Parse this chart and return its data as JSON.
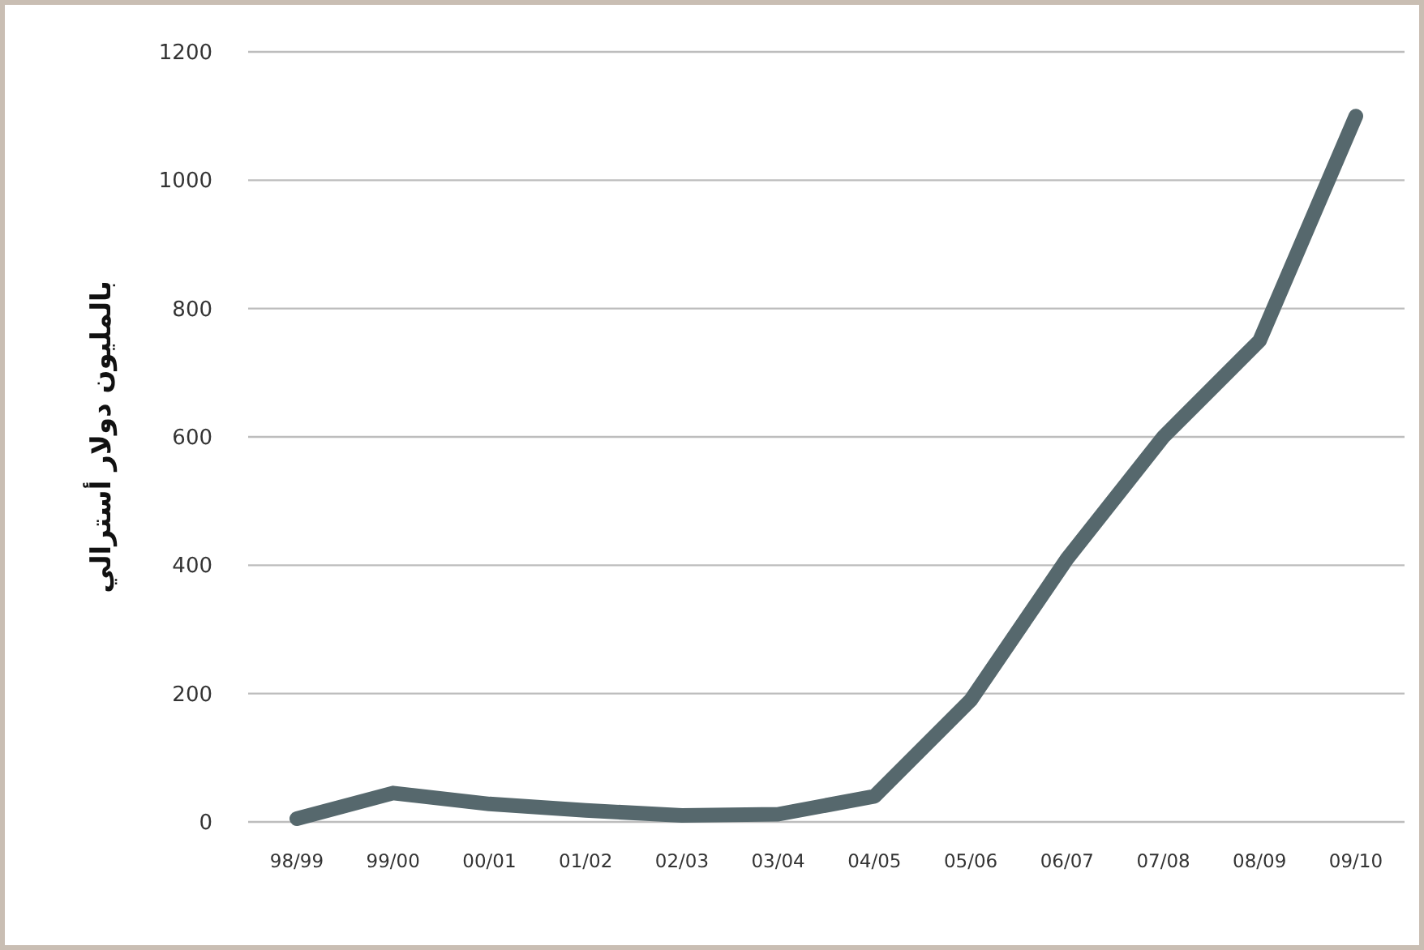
{
  "chart_data": {
    "type": "line",
    "ylabel": "بالمليون دولار أسترالي",
    "categories": [
      "98/99",
      "99/00",
      "00/01",
      "01/02",
      "02/03",
      "03/04",
      "04/05",
      "05/06",
      "06/07",
      "07/08",
      "08/09",
      "09/10"
    ],
    "series": [
      {
        "color": "#56686d",
        "values": [
          5,
          45,
          28,
          18,
          10,
          12,
          40,
          190,
          410,
          600,
          750,
          1100
        ]
      }
    ],
    "ylim": [
      0,
      1200
    ],
    "yticks": [
      0,
      200,
      400,
      600,
      800,
      1000,
      1200
    ],
    "grid": "y",
    "marker": "none",
    "line_style": "solid"
  }
}
